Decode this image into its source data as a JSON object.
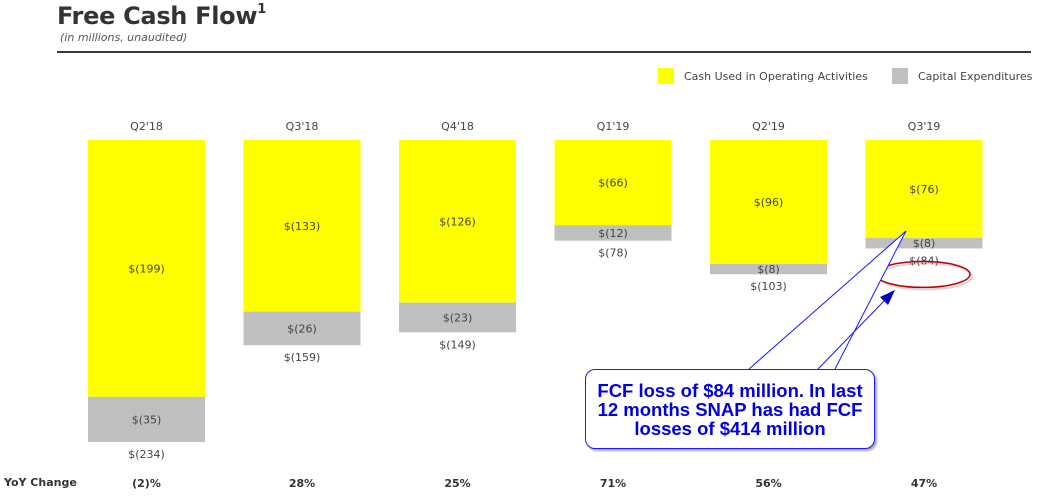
{
  "header": {
    "title": "Free Cash Flow",
    "title_superscript": "1",
    "subtitle": "(in millions, unaudited)"
  },
  "legend": [
    {
      "label": "Cash Used in Operating Activities",
      "color": "#FFFF00"
    },
    {
      "label": "Capital Expenditures",
      "color": "#BFBFBF"
    }
  ],
  "callout": {
    "text": "FCF loss of $84 million. In last 12 months SNAP has had FCF losses of $414 million",
    "color": "#0000E0",
    "highlight_ring_color": "#C00000"
  },
  "yoy": {
    "label": "YoY Change"
  },
  "chart_data": {
    "type": "bar",
    "stacked": true,
    "title": "Free Cash Flow",
    "subtitle": "(in millions, unaudited)",
    "xlabel": "",
    "ylabel": "",
    "ylim": [
      0,
      -234
    ],
    "grid": false,
    "legend_position": "top-right",
    "categories": [
      "Q2'18",
      "Q3'18",
      "Q4'18",
      "Q1'19",
      "Q2'19",
      "Q3'19"
    ],
    "series": [
      {
        "name": "Cash Used in Operating Activities",
        "color": "#FFFF00",
        "values": [
          -199,
          -133,
          -126,
          -66,
          -96,
          -76
        ],
        "labels": [
          "$(199)",
          "$(133)",
          "$(126)",
          "$(66)",
          "$(96)",
          "$(76)"
        ]
      },
      {
        "name": "Capital Expenditures",
        "color": "#BFBFBF",
        "values": [
          -35,
          -26,
          -23,
          -12,
          -8,
          -8
        ],
        "labels": [
          "$(35)",
          "$(26)",
          "$(23)",
          "$(12)",
          "$(8)",
          "$(8)"
        ]
      }
    ],
    "totals": [
      -234,
      -159,
      -149,
      -78,
      -103,
      -84
    ],
    "total_labels": [
      "$(234)",
      "$(159)",
      "$(149)",
      "$(78)",
      "$(103)",
      "$(84)"
    ],
    "yoy_change": [
      "(2)%",
      "28%",
      "25%",
      "71%",
      "56%",
      "47%"
    ],
    "annotations": [
      {
        "text": "FCF loss of $84 million. In last 12 months SNAP has had FCF losses of $414 million",
        "target": "Q3'19"
      }
    ]
  }
}
